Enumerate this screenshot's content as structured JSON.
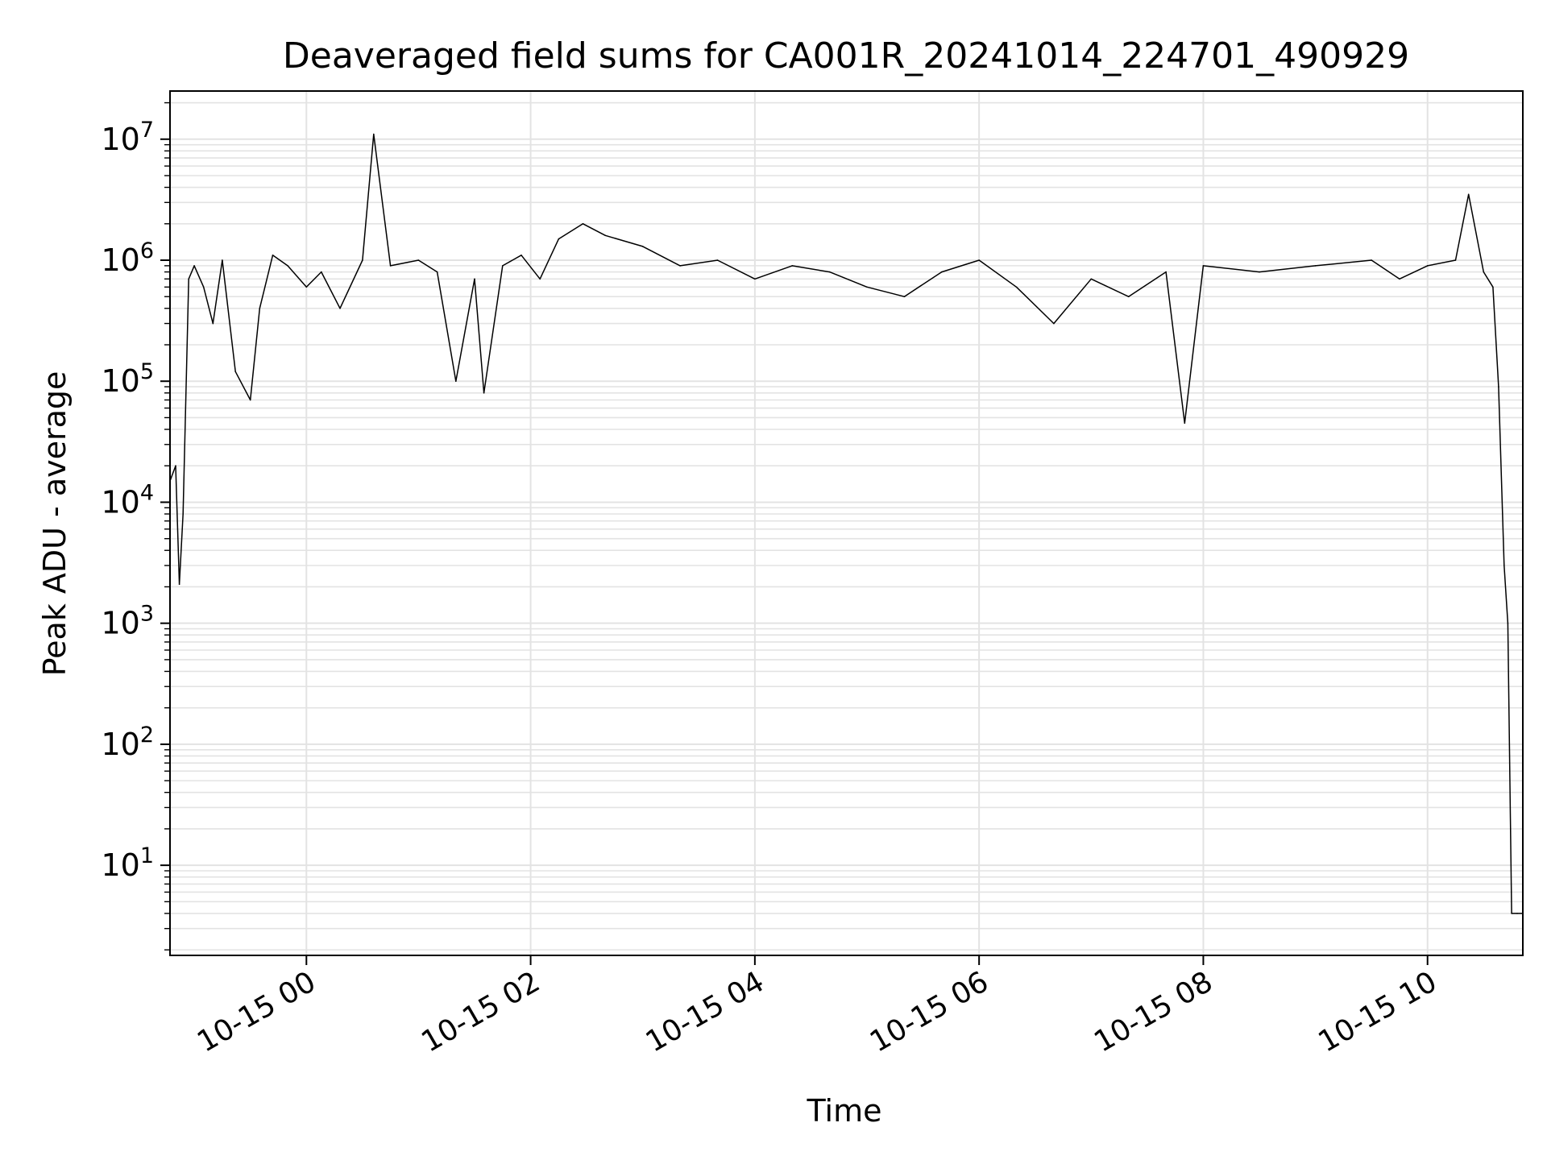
{
  "chart_data": {
    "type": "line",
    "title": "Deaveraged field sums for CA001R_20241014_224701_490929",
    "xlabel": "Time",
    "ylabel": "Peak ADU - average",
    "y_scale": "log",
    "ylim": [
      1.8,
      25000000
    ],
    "xlim": [
      "2024-10-14 22:47",
      "2024-10-15 10:51"
    ],
    "grid": true,
    "x_ticks": [
      {
        "t": "2024-10-15 00:00",
        "label": "10-15 00"
      },
      {
        "t": "2024-10-15 02:00",
        "label": "10-15 02"
      },
      {
        "t": "2024-10-15 04:00",
        "label": "10-15 04"
      },
      {
        "t": "2024-10-15 06:00",
        "label": "10-15 06"
      },
      {
        "t": "2024-10-15 08:00",
        "label": "10-15 08"
      },
      {
        "t": "2024-10-15 10:00",
        "label": "10-15 10"
      }
    ],
    "y_ticks": [
      {
        "v": 10,
        "base": "10",
        "exp": "1"
      },
      {
        "v": 100,
        "base": "10",
        "exp": "2"
      },
      {
        "v": 1000,
        "base": "10",
        "exp": "3"
      },
      {
        "v": 10000,
        "base": "10",
        "exp": "4"
      },
      {
        "v": 100000,
        "base": "10",
        "exp": "5"
      },
      {
        "v": 1000000,
        "base": "10",
        "exp": "6"
      },
      {
        "v": 10000000,
        "base": "10",
        "exp": "7"
      }
    ],
    "series": [
      {
        "line_color": "#000000",
        "x": [
          "2024-10-14 22:47",
          "2024-10-14 22:50",
          "2024-10-14 22:52",
          "2024-10-14 22:54",
          "2024-10-14 22:57",
          "2024-10-14 23:00",
          "2024-10-14 23:05",
          "2024-10-14 23:10",
          "2024-10-14 23:15",
          "2024-10-14 23:22",
          "2024-10-14 23:30",
          "2024-10-14 23:35",
          "2024-10-14 23:42",
          "2024-10-14 23:50",
          "2024-10-15 00:00",
          "2024-10-15 00:08",
          "2024-10-15 00:18",
          "2024-10-15 00:30",
          "2024-10-15 00:36",
          "2024-10-15 00:45",
          "2024-10-15 01:00",
          "2024-10-15 01:10",
          "2024-10-15 01:20",
          "2024-10-15 01:30",
          "2024-10-15 01:35",
          "2024-10-15 01:45",
          "2024-10-15 01:55",
          "2024-10-15 02:05",
          "2024-10-15 02:15",
          "2024-10-15 02:28",
          "2024-10-15 02:40",
          "2024-10-15 03:00",
          "2024-10-15 03:20",
          "2024-10-15 03:40",
          "2024-10-15 04:00",
          "2024-10-15 04:20",
          "2024-10-15 04:40",
          "2024-10-15 05:00",
          "2024-10-15 05:20",
          "2024-10-15 05:40",
          "2024-10-15 06:00",
          "2024-10-15 06:20",
          "2024-10-15 06:40",
          "2024-10-15 07:00",
          "2024-10-15 07:20",
          "2024-10-15 07:40",
          "2024-10-15 07:50",
          "2024-10-15 08:00",
          "2024-10-15 08:30",
          "2024-10-15 09:00",
          "2024-10-15 09:30",
          "2024-10-15 09:45",
          "2024-10-15 10:00",
          "2024-10-15 10:15",
          "2024-10-15 10:22",
          "2024-10-15 10:30",
          "2024-10-15 10:35",
          "2024-10-15 10:38",
          "2024-10-15 10:41",
          "2024-10-15 10:43",
          "2024-10-15 10:45",
          "2024-10-15 10:48",
          "2024-10-15 10:51"
        ],
        "y": [
          15000,
          20000,
          2100,
          8000,
          700000,
          900000,
          600000,
          300000,
          1000000,
          120000,
          70000,
          400000,
          1100000,
          900000,
          600000,
          800000,
          400000,
          1000000,
          11000000,
          900000,
          1000000,
          800000,
          100000,
          700000,
          80000,
          900000,
          1100000,
          700000,
          1500000,
          2000000,
          1600000,
          1300000,
          900000,
          1000000,
          700000,
          900000,
          800000,
          600000,
          500000,
          800000,
          1000000,
          600000,
          300000,
          700000,
          500000,
          800000,
          45000,
          900000,
          800000,
          900000,
          1000000,
          700000,
          900000,
          1000000,
          3500000,
          800000,
          600000,
          90000,
          3000,
          1000,
          4,
          4,
          4
        ]
      }
    ]
  }
}
